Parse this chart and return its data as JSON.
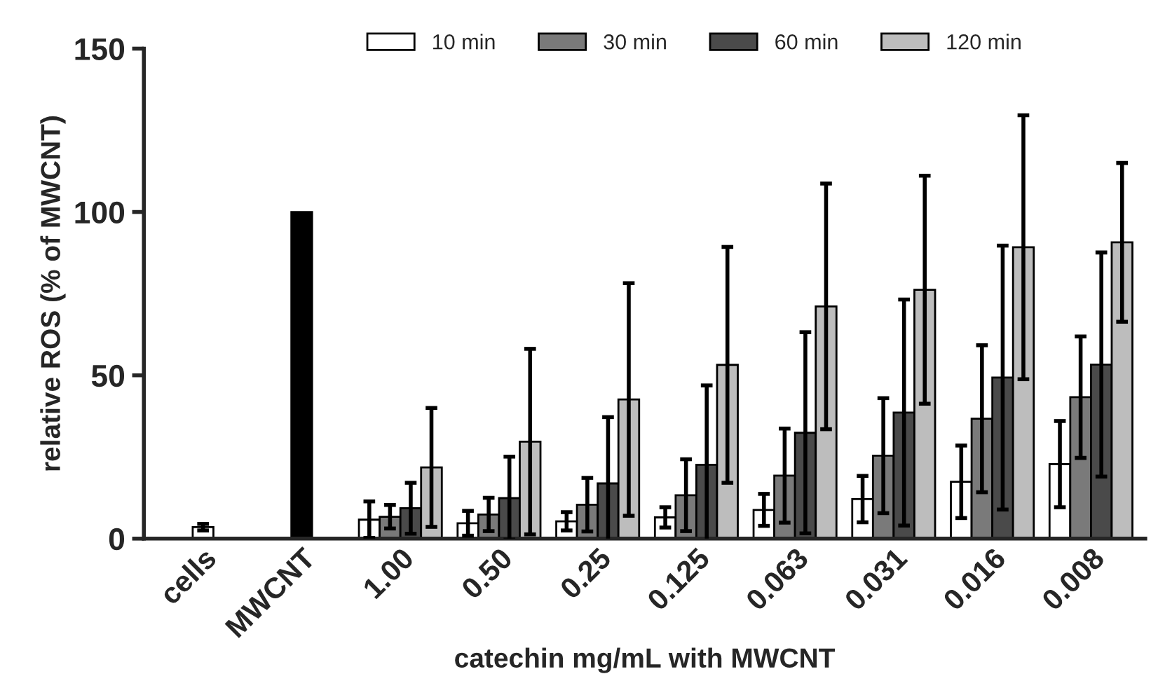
{
  "chart_data": {
    "type": "bar",
    "ylabel": "relative ROS (% of MWCNT)",
    "xlabel": "catechin mg/mL with MWCNT",
    "categories": [
      "cells",
      "MWCNT",
      "1.00",
      "0.50",
      "0.25",
      "0.125",
      "0.063",
      "0.031",
      "0.016",
      "0.008"
    ],
    "series": [
      {
        "colors": [
          "#ffffff",
          "#000000",
          null,
          null,
          null,
          null,
          null,
          null,
          null,
          null
        ],
        "values": [
          3.5,
          100,
          null,
          null,
          null,
          null,
          null,
          null,
          null,
          null
        ],
        "errors": [
          1,
          null,
          null,
          null,
          null,
          null,
          null,
          null,
          null,
          null
        ]
      },
      {
        "name": "10 min",
        "color": "#ffffff",
        "values": [
          null,
          null,
          5.8,
          4.7,
          5.3,
          6.5,
          8.8,
          12.1,
          17.4,
          22.8
        ],
        "errors": [
          null,
          null,
          5.6,
          3.8,
          2.8,
          3.1,
          4.9,
          7.1,
          11.1,
          13.2
        ]
      },
      {
        "name": "30 min",
        "color": "#7a7a7a",
        "values": [
          null,
          null,
          6.7,
          7.4,
          10.4,
          13.3,
          19.3,
          25.4,
          36.7,
          43.3
        ],
        "errors": [
          null,
          null,
          3.6,
          5.1,
          8.2,
          11,
          14.4,
          17.6,
          22.5,
          18.6
        ]
      },
      {
        "name": "60 min",
        "color": "#4a4a4a",
        "values": [
          null,
          null,
          9.3,
          12.4,
          16.9,
          22.6,
          32.4,
          38.6,
          49.3,
          53.3
        ],
        "errors": [
          null,
          null,
          7.8,
          12.7,
          20.3,
          24.3,
          30.8,
          34.6,
          40.4,
          34.3
        ]
      },
      {
        "name": "120 min",
        "color": "#bdbdbd",
        "values": [
          null,
          null,
          21.8,
          29.7,
          42.6,
          53.2,
          71.1,
          76.2,
          89.2,
          90.7
        ],
        "errors": [
          null,
          null,
          18.2,
          28.4,
          35.6,
          36.1,
          37.6,
          34.9,
          40.4,
          24.3
        ]
      }
    ],
    "ylim": [
      0,
      150
    ],
    "yticks": [
      0,
      50,
      100,
      150
    ],
    "grid": false,
    "legend": "top"
  }
}
